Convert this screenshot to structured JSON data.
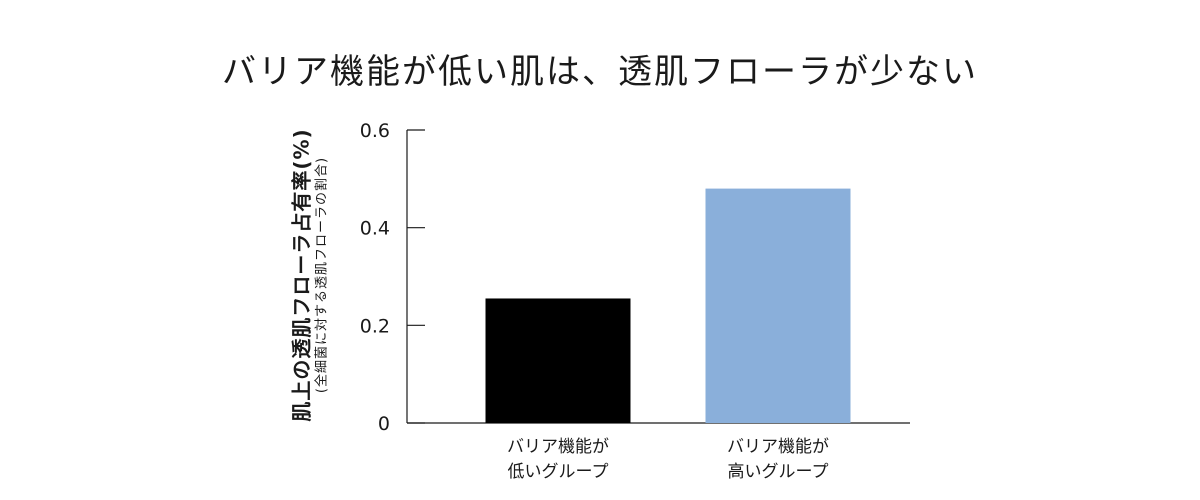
{
  "chart_data": {
    "type": "bar",
    "title": "バリア機能が低い肌は、透肌フローラが少ない",
    "ylabel": "肌上の透肌フローラ占有率(%)",
    "ylabel_sub": "(全細菌に対する透肌フローラの割合)",
    "xlabel": "",
    "ylim": [
      0,
      0.6
    ],
    "yticks": [
      {
        "value": 0,
        "label": "0"
      },
      {
        "value": 0.2,
        "label": "0.2"
      },
      {
        "value": 0.4,
        "label": "0.4"
      },
      {
        "value": 0.6,
        "label": "0.6"
      }
    ],
    "categories": [
      [
        "バリア機能が",
        "低いグループ"
      ],
      [
        "バリア機能が",
        "高いグループ"
      ]
    ],
    "values": [
      0.255,
      0.48
    ],
    "colors": [
      "#000000",
      "#8aafda"
    ],
    "grid": false,
    "legend": "none"
  }
}
